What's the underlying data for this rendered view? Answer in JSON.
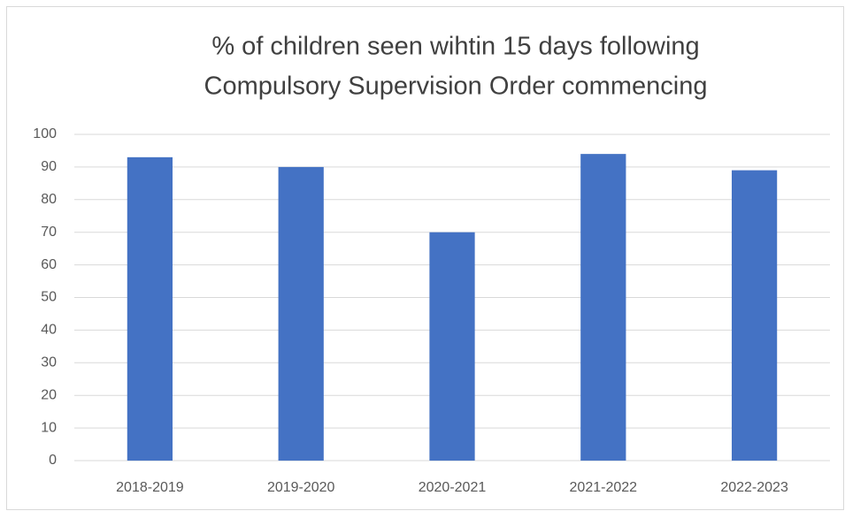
{
  "chart_data": {
    "type": "bar",
    "title": [
      "% of children seen wihtin 15 days following",
      "Compulsory Supervision  Order commencing"
    ],
    "categories": [
      "2018-2019",
      "2019-2020",
      "2020-2021",
      "2021-2022",
      "2022-2023"
    ],
    "values": [
      93,
      90,
      70,
      94,
      89
    ],
    "color": "#4472c4",
    "ylim": [
      0,
      100
    ],
    "yticks": [
      0,
      10,
      20,
      30,
      40,
      50,
      60,
      70,
      80,
      90,
      100
    ],
    "grid": true
  }
}
